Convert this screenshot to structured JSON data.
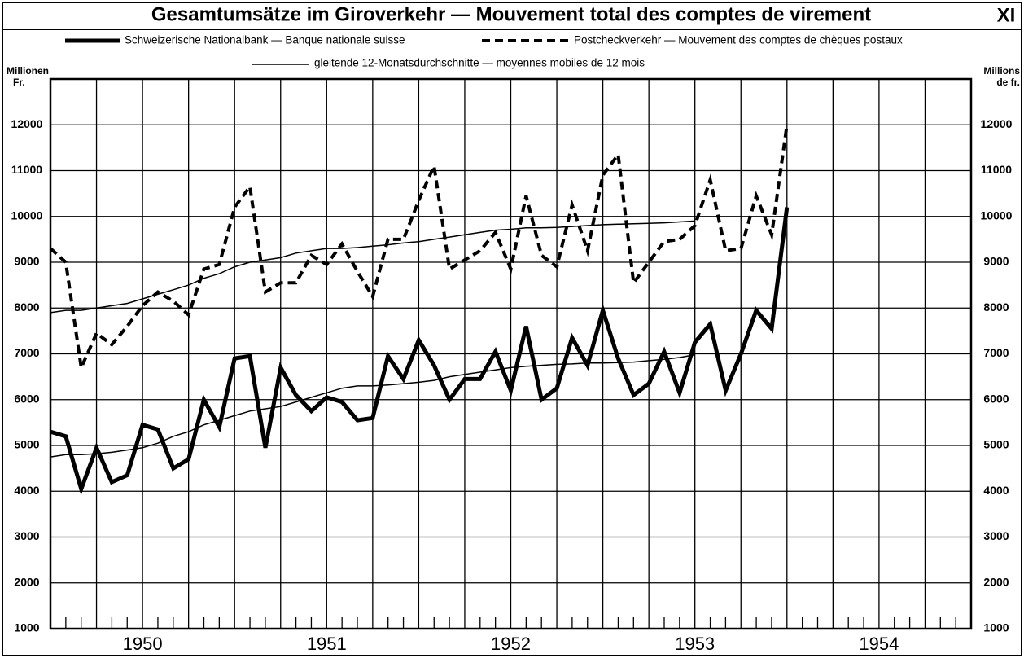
{
  "chart_data": {
    "type": "line",
    "title": "Gesamtumsätze im Giroverkehr — Mouvement total des comptes de virement",
    "chart_number": "XI",
    "y_axis_label": [
      "Millionen",
      "Fr."
    ],
    "y2_axis_label": [
      "Millions",
      "de fr."
    ],
    "moving_average_legend": "gleitende 12-Monatsdurchschnitte — moyennes mobiles de 12 mois",
    "x": [
      1950,
      1950.083,
      1950.167,
      1950.25,
      1950.333,
      1950.417,
      1950.5,
      1950.583,
      1950.667,
      1950.75,
      1950.833,
      1950.917,
      1951,
      1951.083,
      1951.167,
      1951.25,
      1951.333,
      1951.417,
      1951.5,
      1951.583,
      1951.667,
      1951.75,
      1951.833,
      1951.917,
      1952,
      1952.083,
      1952.167,
      1952.25,
      1952.333,
      1952.417,
      1952.5,
      1952.583,
      1952.667,
      1952.75,
      1952.833,
      1952.917,
      1953,
      1953.083,
      1953.167,
      1953.25,
      1953.333,
      1953.417,
      1953.5,
      1953.583,
      1953.667,
      1953.75,
      1953.833,
      1953.917,
      1954
    ],
    "series": [
      {
        "name": "Schweizerische Nationalbank — Banque nationale suisse",
        "color": "#000000",
        "line_style": "solid",
        "line_width": 5,
        "values": [
          5300,
          5200,
          4050,
          4950,
          4200,
          4350,
          5450,
          5350,
          4500,
          4700,
          6000,
          5400,
          6900,
          6950,
          4950,
          6700,
          6100,
          5750,
          6050,
          5950,
          5550,
          5600,
          6950,
          6450,
          7300,
          6750,
          6000,
          6450,
          6450,
          7050,
          6200,
          7600,
          6000,
          6250,
          7350,
          6750,
          7950,
          6900,
          6100,
          6350,
          7050,
          6150,
          7250,
          7650,
          6200,
          7000,
          7950,
          7550,
          10200
        ]
      },
      {
        "name": "Postcheckverkehr — Mouvement des comptes de chèques postaux",
        "color": "#000000",
        "line_style": "dashed",
        "line_width": 4,
        "values": [
          9300,
          9000,
          6700,
          7450,
          7200,
          7600,
          8050,
          8350,
          8150,
          7850,
          8850,
          8950,
          10200,
          10650,
          8350,
          8550,
          8550,
          9150,
          8950,
          9400,
          8800,
          8250,
          9500,
          9500,
          10350,
          11100,
          8850,
          9050,
          9250,
          9650,
          8850,
          10450,
          9150,
          8900,
          10250,
          9250,
          10900,
          11350,
          8550,
          9000,
          9450,
          9500,
          9800,
          10800,
          9250,
          9300,
          10450,
          9600,
          12000
        ]
      },
      {
        "color": "#000000",
        "line_style": "solid",
        "line_width": 1.5,
        "values": [
          4750,
          4800,
          4800,
          4820,
          4850,
          4900,
          4950,
          5050,
          5200,
          5300,
          5450,
          5550,
          5650,
          5750,
          5800,
          5850,
          5950,
          6050,
          6150,
          6250,
          6300,
          6300,
          6320,
          6350,
          6380,
          6420,
          6500,
          6550,
          6600,
          6650,
          6700,
          6730,
          6750,
          6770,
          6780,
          6800,
          6800,
          6810,
          6820,
          6850,
          6880,
          6920,
          6980,
          null,
          null,
          null,
          null,
          null,
          null
        ]
      },
      {
        "color": "#000000",
        "line_style": "solid",
        "line_width": 1.5,
        "values": [
          7900,
          7950,
          7950,
          8000,
          8050,
          8100,
          8200,
          8300,
          8400,
          8500,
          8650,
          8750,
          8900,
          9000,
          9050,
          9100,
          9200,
          9250,
          9300,
          9300,
          9320,
          9350,
          9380,
          9420,
          9450,
          9500,
          9550,
          9600,
          9650,
          9700,
          9720,
          9750,
          9750,
          9760,
          9780,
          9800,
          9820,
          9830,
          9840,
          9850,
          9860,
          9880,
          9900,
          null,
          null,
          null,
          null,
          null,
          null
        ]
      }
    ],
    "xlim": [
      1950,
      1955
    ],
    "xticks": [
      {
        "value": 1950.5,
        "label": "1950"
      },
      {
        "value": 1951.5,
        "label": "1951"
      },
      {
        "value": 1952.5,
        "label": "1952"
      },
      {
        "value": 1953.5,
        "label": "1953"
      },
      {
        "value": 1954.5,
        "label": "1954"
      }
    ],
    "xgrid": [
      1950,
      1950.25,
      1950.5,
      1950.75,
      1951,
      1951.25,
      1951.5,
      1951.75,
      1952,
      1952.25,
      1952.5,
      1952.75,
      1953,
      1953.25,
      1953.5,
      1953.75,
      1954,
      1954.25,
      1954.5,
      1954.75,
      1955
    ],
    "ylim": [
      1000,
      13000
    ],
    "yticks": [
      1000,
      2000,
      3000,
      4000,
      5000,
      6000,
      7000,
      8000,
      9000,
      10000,
      11000,
      12000
    ],
    "grid": true
  }
}
